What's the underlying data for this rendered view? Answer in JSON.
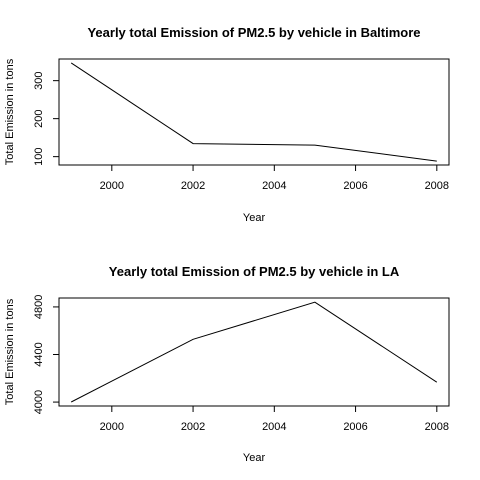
{
  "chart_data": [
    {
      "type": "line",
      "title": "Yearly total Emission of PM2.5 by vehicle in Baltimore",
      "xlabel": "Year",
      "ylabel": "Total Emission in tons",
      "x": [
        1999,
        2002,
        2005,
        2008
      ],
      "y": [
        346.8,
        134.3,
        130.4,
        88.3
      ],
      "xlim": [
        1998.7,
        2008.3
      ],
      "ylim": [
        78,
        357
      ],
      "xticks": [
        "2000",
        "2002",
        "2004",
        "2006",
        "2008"
      ],
      "yticks": [
        "100",
        "200",
        "300"
      ],
      "grid": false
    },
    {
      "type": "line",
      "title": "Yearly total Emission of PM2.5 by vehicle in LA",
      "xlabel": "Year",
      "ylabel": "Total Emission in tons",
      "x": [
        1999,
        2002,
        2005,
        2008
      ],
      "y": [
        4001,
        4528,
        4840,
        4167
      ],
      "xlim": [
        1998.7,
        2008.3
      ],
      "ylim": [
        3967,
        4875
      ],
      "xticks": [
        "2000",
        "2002",
        "2004",
        "2006",
        "2008"
      ],
      "yticks": [
        "4000",
        "4400",
        "4800"
      ],
      "grid": false
    }
  ]
}
